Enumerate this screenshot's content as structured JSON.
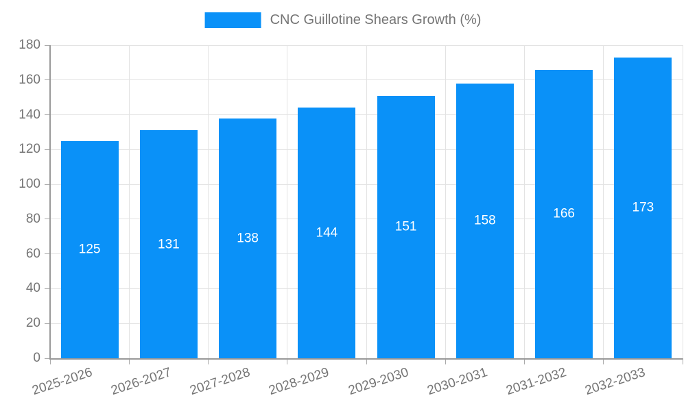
{
  "legend": {
    "label": "CNC Guillotine Shears Growth (%)"
  },
  "chart_data": {
    "type": "bar",
    "title": "CNC Guillotine Shears Growth (%)",
    "categories": [
      "2025-2026",
      "2026-2027",
      "2027-2028",
      "2028-2029",
      "2029-2030",
      "2030-2031",
      "2031-2032",
      "2032-2033"
    ],
    "series": [
      {
        "name": "CNC Guillotine Shears Growth (%)",
        "values": [
          125,
          131,
          138,
          144,
          151,
          158,
          166,
          173
        ]
      }
    ],
    "xlabel": "",
    "ylabel": "",
    "ylim": [
      0,
      180
    ],
    "yticks": [
      0,
      20,
      40,
      60,
      80,
      100,
      120,
      140,
      160,
      180
    ],
    "grid": true,
    "legend_position": "top-center",
    "x_label_rotation_deg": -18,
    "value_labels": "inside-center",
    "colors": {
      "bar": "#0a91f8",
      "value_label": "#ffffff",
      "axis_text": "#757575",
      "grid_line": "#e3e3e3",
      "axis_line": "#999999",
      "tick_mark": "#aaaaaa",
      "background": "#ffffff"
    }
  }
}
